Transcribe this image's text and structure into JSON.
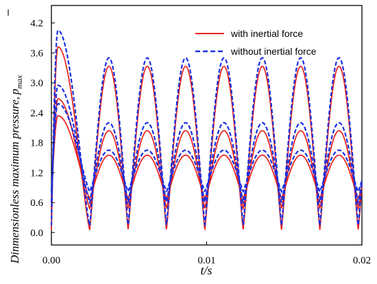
{
  "chart_data": {
    "type": "line",
    "xlabel": "t/s",
    "ylabel_main": "Dinmensionless maximum pressure,",
    "ylabel_symbol": "p",
    "ylabel_subscript": "max",
    "xlim": [
      0.0,
      0.02
    ],
    "ylim": [
      -0.25,
      4.55
    ],
    "x_ticks": [
      0.0,
      0.01,
      0.02
    ],
    "x_tick_labels": [
      "0.00",
      "0.01",
      "0.02"
    ],
    "y_ticks": [
      0.0,
      0.6,
      1.2,
      1.8,
      2.4,
      3.0,
      3.6,
      4.2
    ],
    "y_tick_labels": [
      "0.0",
      "0.6",
      "1.2",
      "1.8",
      "2.4",
      "3.0",
      "3.6",
      "4.2"
    ],
    "grid": false,
    "legend_position": "top-right",
    "period_s": 0.00247,
    "series": [
      {
        "name": "with inertial force",
        "color": "#e8211c",
        "dash": "solid",
        "curves": [
          {
            "first_peak": 3.72,
            "peak": 3.33,
            "trough": 0.05
          },
          {
            "first_peak": 2.68,
            "peak": 2.04,
            "trough": 0.48
          },
          {
            "first_peak": 2.34,
            "peak": 1.55,
            "trough": 0.68
          }
        ]
      },
      {
        "name": "without inertial force",
        "color": "#1a2fe0",
        "dash": "dashed",
        "curves": [
          {
            "first_peak": 4.05,
            "peak": 3.5,
            "trough": 0.14
          },
          {
            "first_peak": 2.95,
            "peak": 2.2,
            "trough": 0.6
          },
          {
            "first_peak": 2.58,
            "peak": 1.65,
            "trough": 0.82
          }
        ]
      }
    ]
  }
}
